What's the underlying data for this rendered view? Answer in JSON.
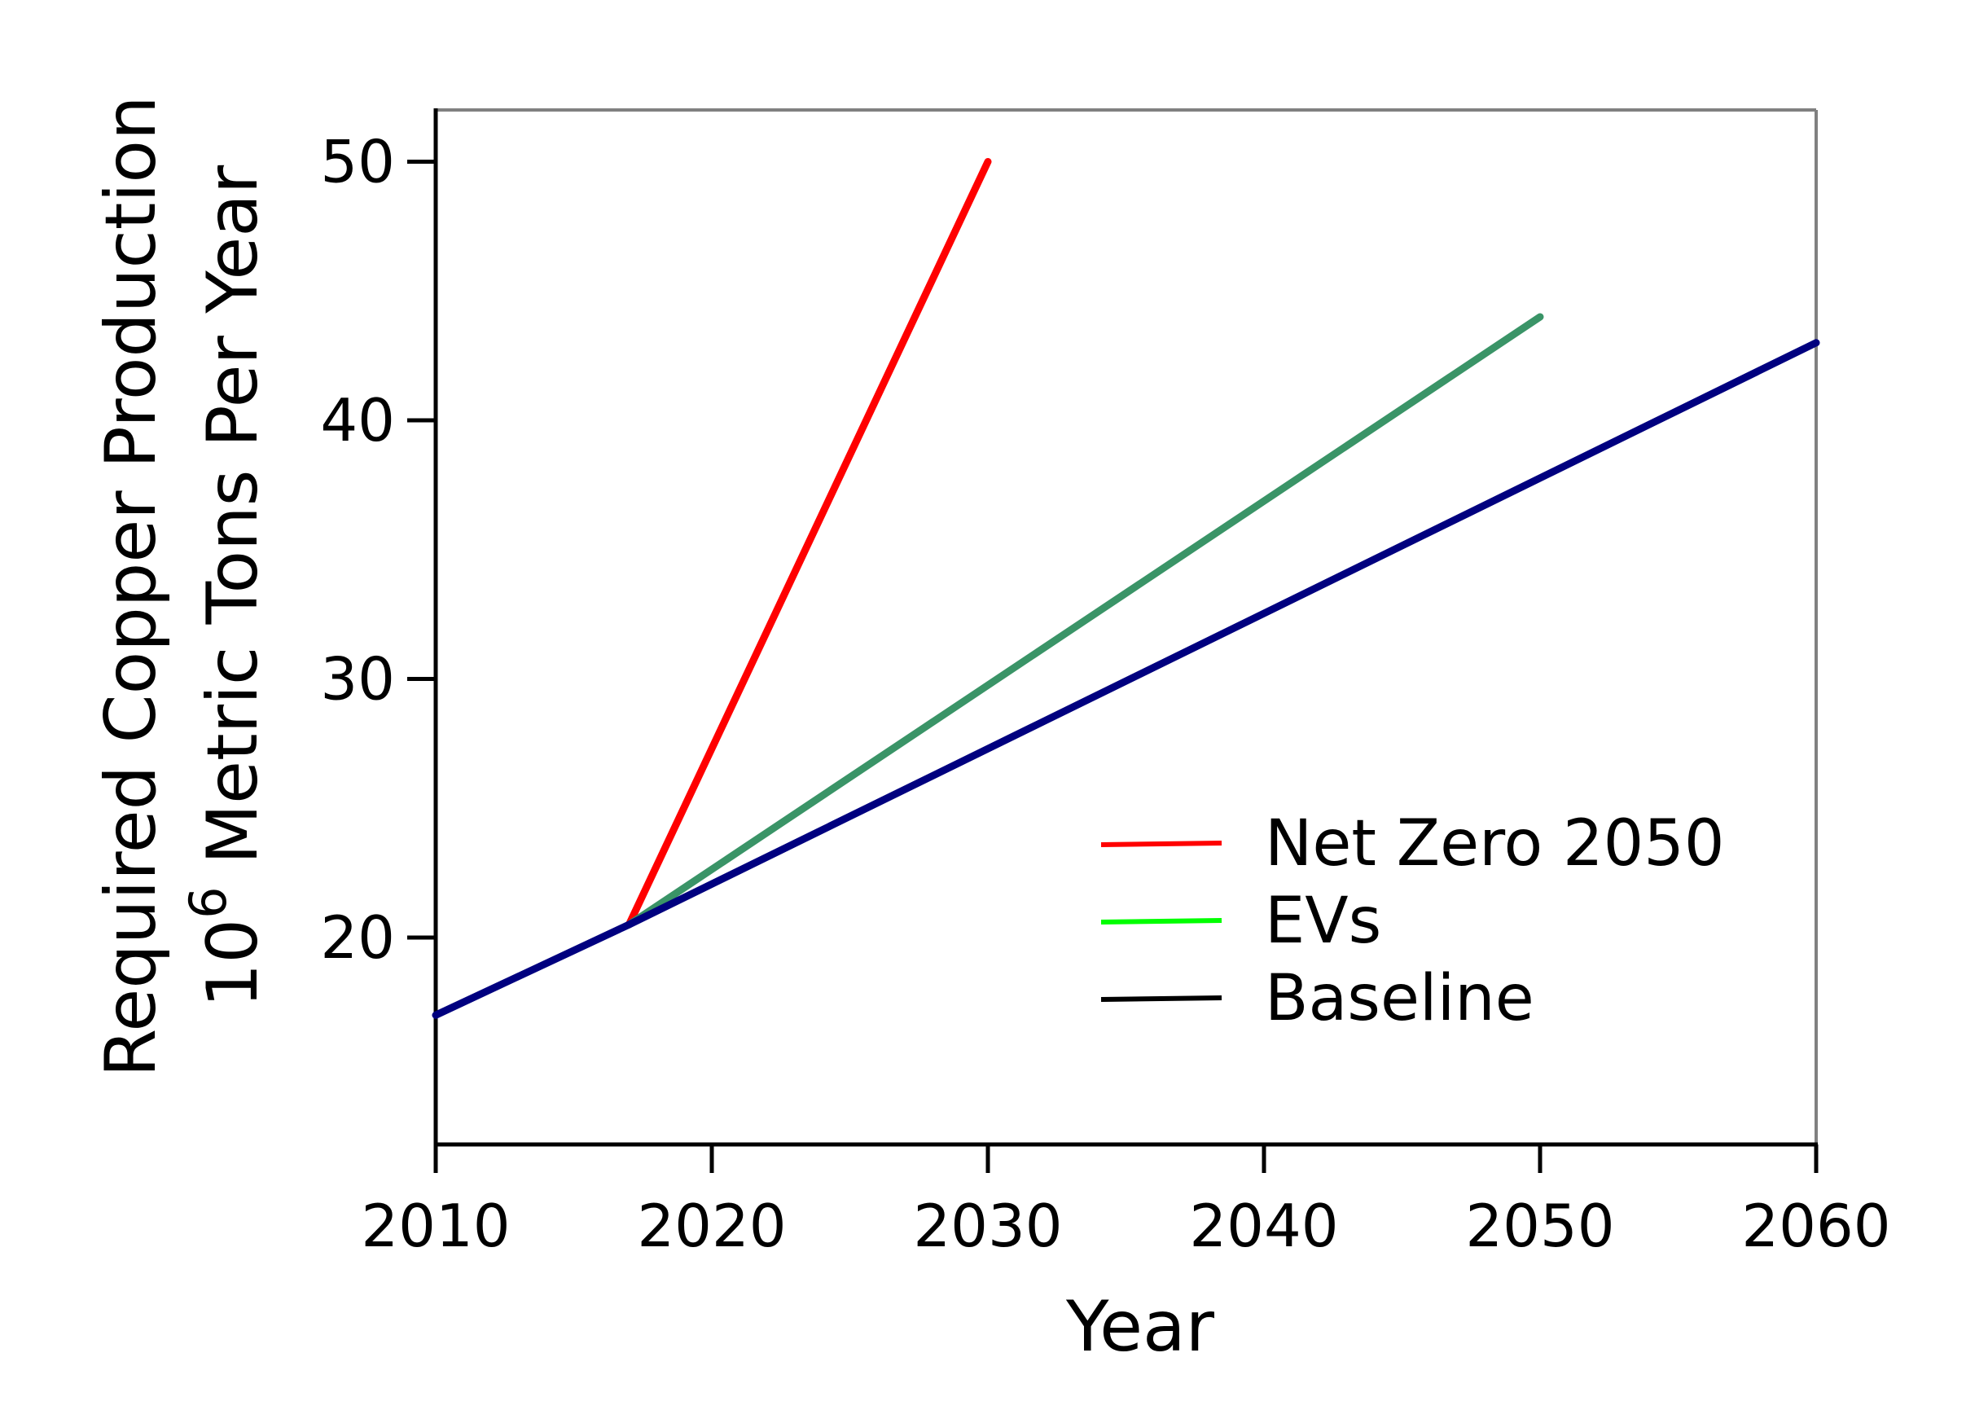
{
  "chart_data": {
    "type": "line",
    "xlabel": "Year",
    "ylabel_line1": "Required Copper Production",
    "ylabel_line2_base": "10",
    "ylabel_line2_exp": "6",
    "ylabel_line2_rest": " Metric Tons Per Year",
    "xlim": [
      2010,
      2060
    ],
    "ylim": [
      12,
      52
    ],
    "xticks": [
      2010,
      2020,
      2030,
      2040,
      2050,
      2060
    ],
    "yticks": [
      20,
      30,
      40,
      50
    ],
    "grid": false,
    "legend_position": "lower-right",
    "series": [
      {
        "name": "Net Zero 2050",
        "color": "#ff0000",
        "legend_color": "#ff0000",
        "x": [
          2017,
          2030
        ],
        "y": [
          20.5,
          50
        ]
      },
      {
        "name": "EVs",
        "color": "#3a9467",
        "legend_color": "#00ff00",
        "x": [
          2017,
          2050
        ],
        "y": [
          20.5,
          44
        ]
      },
      {
        "name": "Baseline",
        "color": "#00007f",
        "legend_color": "#000000",
        "x": [
          2010,
          2017,
          2060
        ],
        "y": [
          17,
          20.5,
          43
        ]
      }
    ]
  }
}
